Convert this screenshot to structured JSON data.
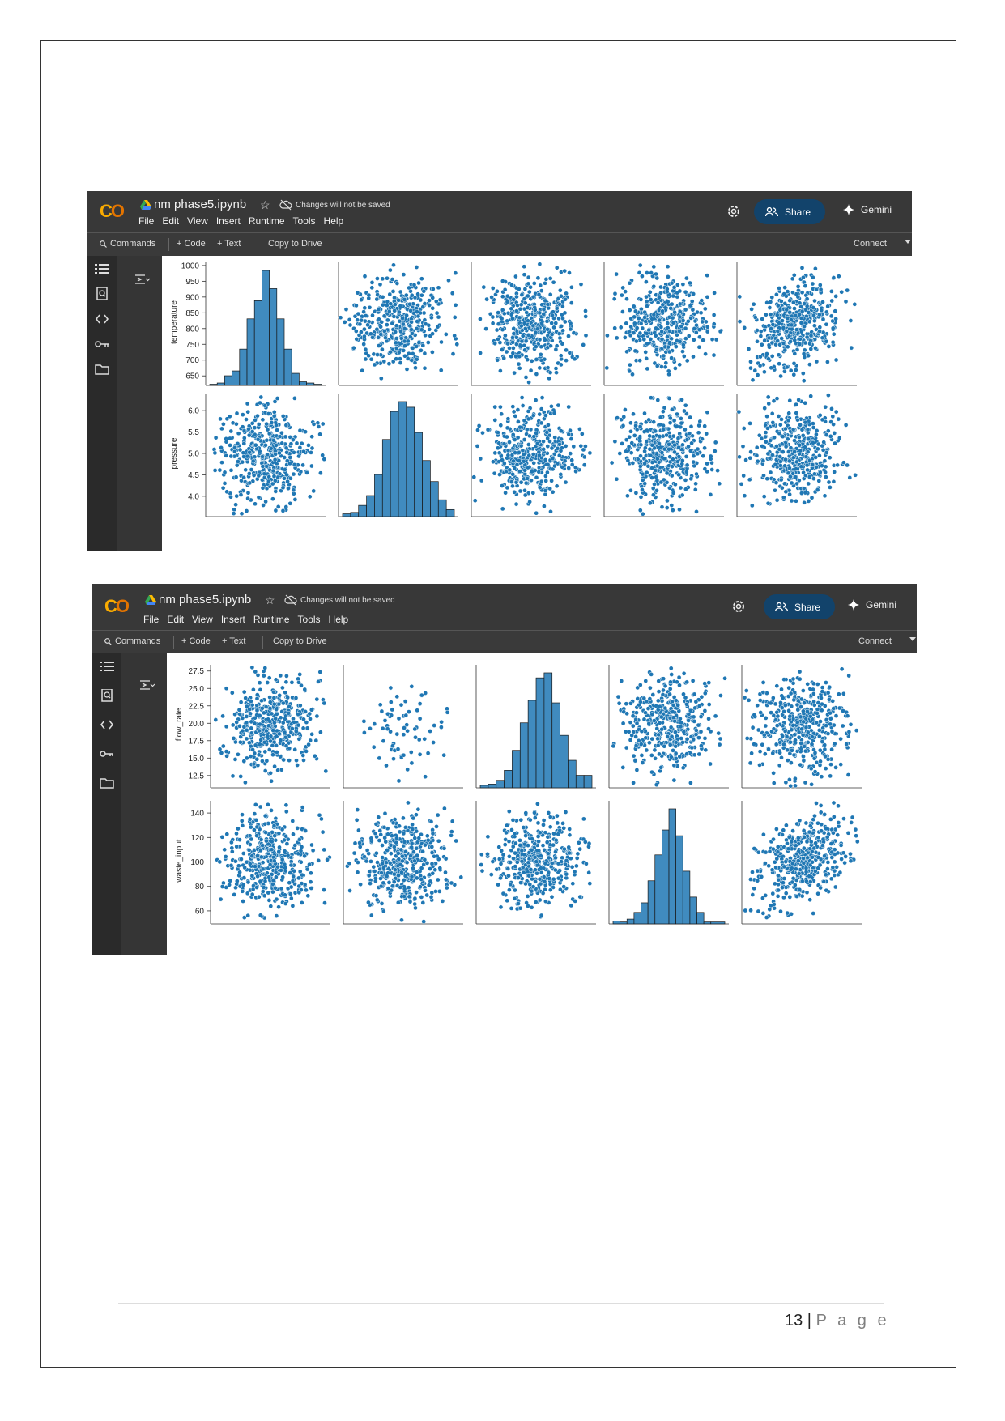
{
  "document": {
    "page_number": "13",
    "page_word": "P a g e"
  },
  "colab": {
    "notebook_title": "nm phase5.ipynb",
    "unsaved_notice": "Changes will not be saved",
    "menu": [
      "File",
      "Edit",
      "View",
      "Insert",
      "Runtime",
      "Tools",
      "Help"
    ],
    "share_label": "Share",
    "gemini_label": "Gemini",
    "toolbar": {
      "commands": "Commands",
      "code": "+ Code",
      "text": "+ Text",
      "copy_to_drive": "Copy to Drive",
      "connect": "Connect"
    },
    "rail_icons": [
      "toc-icon",
      "find-icon",
      "code-snippets-icon",
      "key-icon",
      "folder-icon"
    ]
  },
  "chart_data": [
    {
      "type": "scatter",
      "title": "",
      "variables_shown": [
        "temperature",
        "pressure"
      ],
      "columns": 5,
      "rows": [
        {
          "ylabel": "temperature",
          "yticks": [
            "650",
            "700",
            "750",
            "800",
            "850",
            "900",
            "950",
            "1000"
          ],
          "ylim": [
            630,
            1010
          ],
          "diagonal_col": 0
        },
        {
          "ylabel": "pressure",
          "yticks": [
            "4.0",
            "4.5",
            "5.0",
            "5.5",
            "6.0"
          ],
          "ylim": [
            3.6,
            6.4
          ],
          "diagonal_col": 1
        }
      ],
      "histogram_temperature": {
        "bins": [
          625,
          650,
          675,
          700,
          725,
          750,
          775,
          800,
          825,
          850,
          875,
          900,
          925,
          950,
          975,
          1000
        ],
        "counts": [
          1,
          2,
          8,
          12,
          30,
          55,
          70,
          95,
          80,
          55,
          30,
          10,
          3,
          2,
          1
        ]
      },
      "histogram_pressure": {
        "counts": [
          2,
          3,
          8,
          15,
          30,
          55,
          75,
          82,
          78,
          60,
          40,
          25,
          12,
          5
        ]
      },
      "marker_color": "#1f77b4"
    },
    {
      "type": "scatter",
      "title": "",
      "variables_shown": [
        "flow_rate",
        "waste_input"
      ],
      "columns": 5,
      "rows": [
        {
          "ylabel": "flow_rate",
          "yticks": [
            "12.5",
            "15.0",
            "17.5",
            "20.0",
            "22.5",
            "25.0",
            "27.5"
          ],
          "ylim": [
            11.2,
            28.4
          ],
          "diagonal_col": 2
        },
        {
          "ylabel": "waste_input",
          "yticks": [
            "60",
            "80",
            "100",
            "120",
            "140"
          ],
          "ylim": [
            52,
            150
          ],
          "diagonal_col": 3
        }
      ],
      "histogram_flow_rate": {
        "counts": [
          2,
          3,
          6,
          14,
          30,
          52,
          70,
          88,
          92,
          68,
          42,
          22,
          10,
          10
        ]
      },
      "histogram_waste_input": {
        "counts": [
          3,
          2,
          5,
          12,
          22,
          45,
          72,
          98,
          120,
          92,
          55,
          28,
          12,
          2,
          2,
          2
        ]
      },
      "marker_color": "#1f77b4"
    }
  ]
}
